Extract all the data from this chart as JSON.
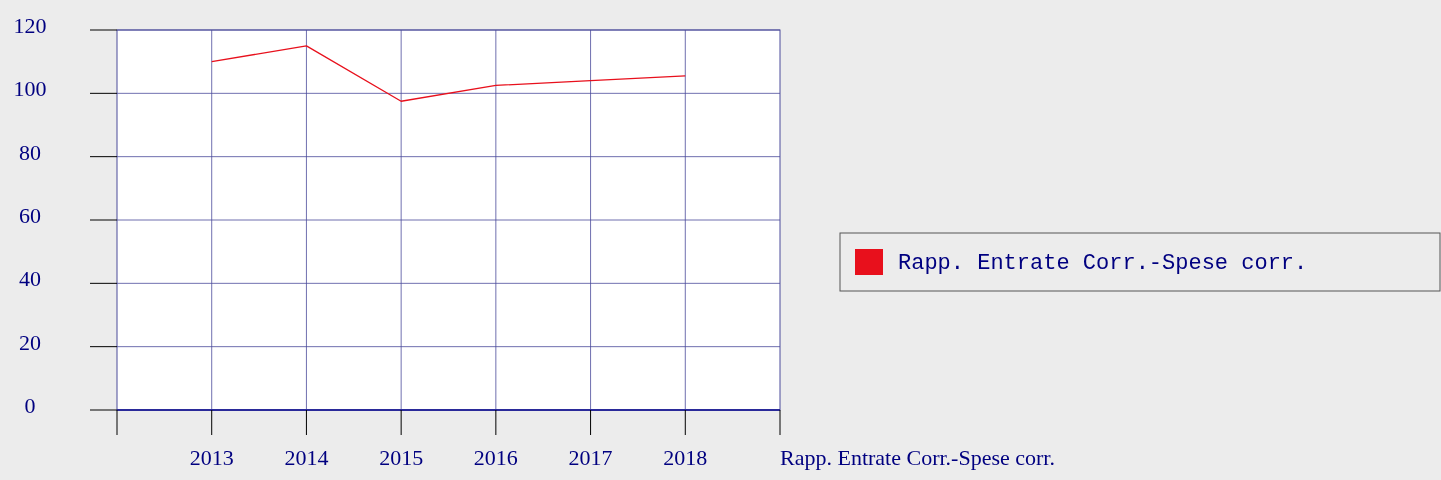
{
  "chart_data": {
    "type": "line",
    "xlabel": "Rapp. Entrate Corr.-Spese corr.",
    "categories": [
      "2013",
      "2014",
      "2015",
      "2016",
      "2017",
      "2018"
    ],
    "series": [
      {
        "name": "Rapp. Entrate Corr.-Spese corr.",
        "color": "#e8101c",
        "values": [
          110,
          115,
          97.5,
          102.5,
          104,
          105.5
        ]
      }
    ],
    "ylim": [
      0,
      120
    ],
    "yticks": [
      0,
      20,
      40,
      60,
      80,
      100,
      120
    ],
    "grid": true,
    "legend": "right",
    "marker": "none"
  }
}
